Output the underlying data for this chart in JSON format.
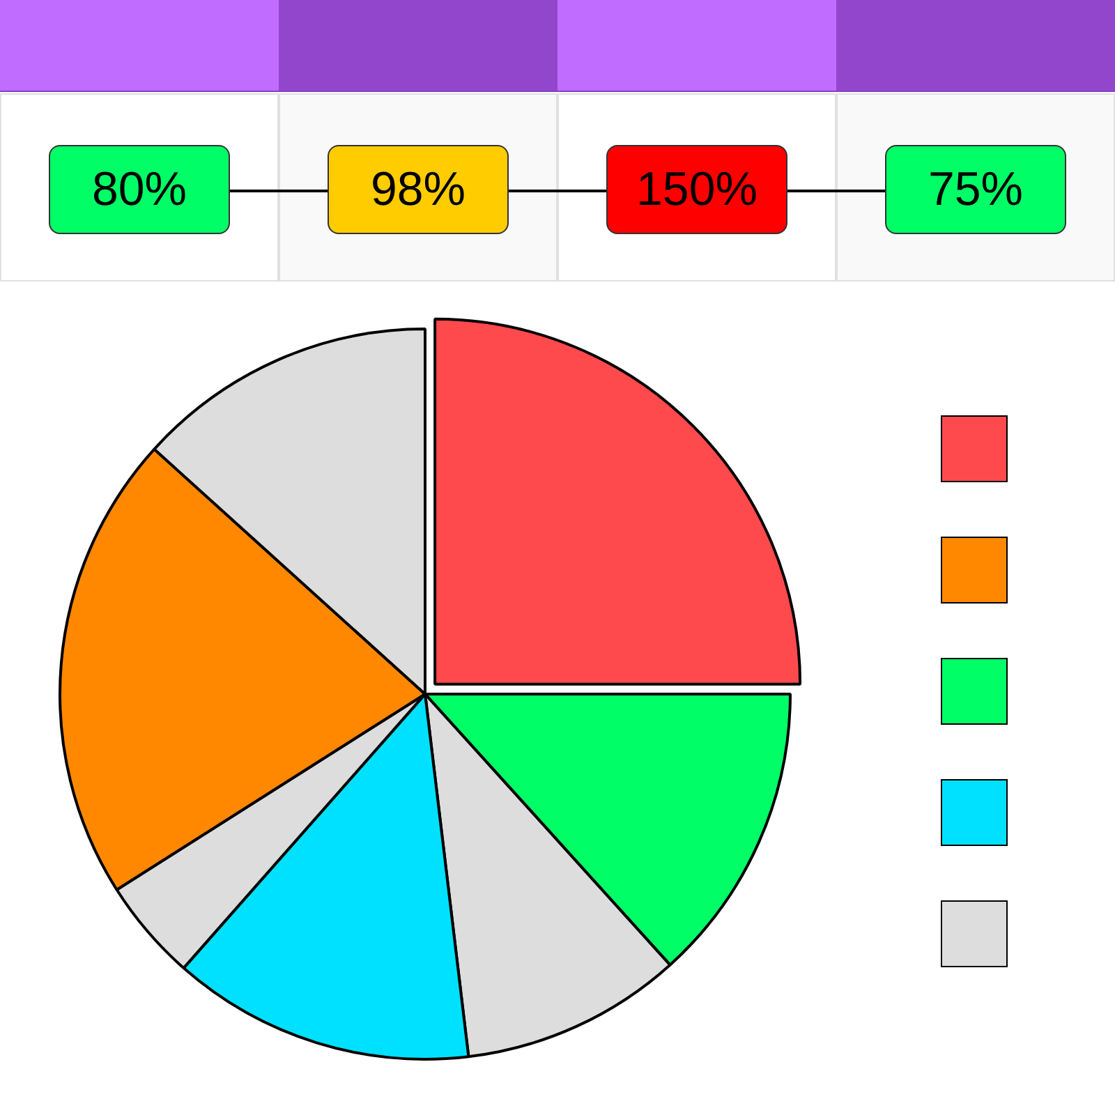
{
  "chart_data": [
    {
      "type": "other",
      "categories": [
        null,
        null,
        null,
        null
      ],
      "values": [
        80,
        98,
        150,
        75
      ],
      "value_labels": [
        "80%",
        "98%",
        "150%",
        "75%"
      ],
      "colors": [
        "#00ff66",
        "#ffcc00",
        "#ff0000",
        "#00ff66"
      ]
    },
    {
      "type": "pie",
      "categories": [
        null,
        null,
        null,
        null,
        null,
        null,
        null
      ],
      "values": [
        25,
        13.3,
        9.8,
        13.4,
        4.5,
        20.7,
        13.3
      ],
      "colors": [
        "#ff4a4d",
        "#00ff66",
        "#dddddd",
        "#00e1ff",
        "#dddddd",
        "#ff8800",
        "#dddddd"
      ]
    }
  ]
}
